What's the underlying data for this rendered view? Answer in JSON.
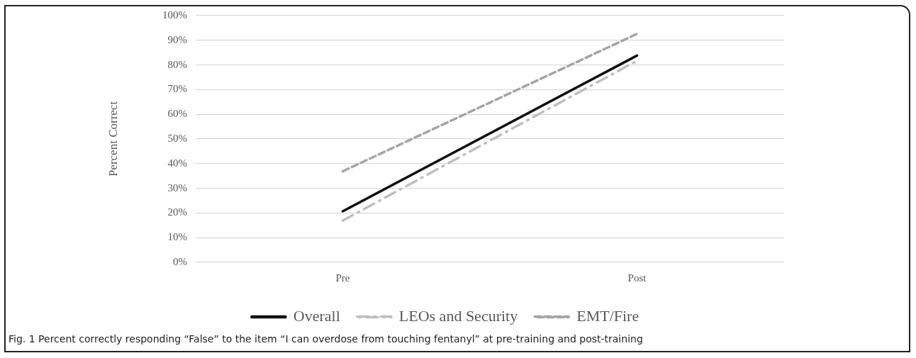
{
  "chart_data": {
    "type": "line",
    "ylabel": "Percent Correct",
    "categories": [
      "Pre",
      "Post"
    ],
    "series": [
      {
        "name": "Overall",
        "color": "#111111",
        "values": [
          20.7,
          83.8
        ],
        "line_style": "solid"
      },
      {
        "name": "LEOs and Security",
        "color": "#bfbfbf",
        "values": [
          16.9,
          81.7
        ],
        "line_style": "dashdot"
      },
      {
        "name": "EMT/Fire",
        "color": "#a5a5a5",
        "values": [
          36.9,
          92.6
        ],
        "line_style": "dashed"
      }
    ],
    "ylim": [
      0,
      100
    ],
    "yticks": [
      {
        "value": 0,
        "label": "0%"
      },
      {
        "value": 10,
        "label": "10%"
      },
      {
        "value": 20,
        "label": "20%"
      },
      {
        "value": 30,
        "label": "30%"
      },
      {
        "value": 40,
        "label": "40%"
      },
      {
        "value": 50,
        "label": "50%"
      },
      {
        "value": 60,
        "label": "60%"
      },
      {
        "value": 70,
        "label": "70%"
      },
      {
        "value": 80,
        "label": "80%"
      },
      {
        "value": 90,
        "label": "90%"
      },
      {
        "value": 100,
        "label": "100%"
      }
    ],
    "grid": "y",
    "legend": "bottom",
    "marker": "none",
    "annotations": [
      "Fig. 1 Percent correctly responding “False” to the item “I can overdose from touching fentanyl” at pre-training and post-training"
    ]
  }
}
